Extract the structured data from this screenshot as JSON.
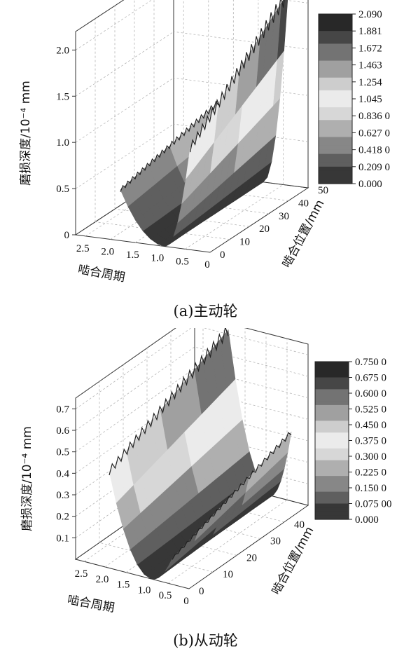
{
  "chart_data": [
    {
      "type": "surface3d",
      "caption": "(a)主动轮",
      "zlabel": "磨损深度/10⁻⁴ mm",
      "xlabel": "啮合周期",
      "ylabel": "啮合位置/mm",
      "x_ticks": [
        "2.5",
        "2.0",
        "1.5",
        "1.0",
        "0.5",
        "0"
      ],
      "y_ticks": [
        "0",
        "10",
        "20",
        "30",
        "40",
        "50"
      ],
      "z_ticks": [
        "0",
        "0.5",
        "1.0",
        "1.5",
        "2.0"
      ],
      "xlim": [
        0,
        2.7
      ],
      "ylim": [
        0,
        50
      ],
      "zlim": [
        0,
        2.2
      ],
      "colorbar": {
        "min": 0.0,
        "max": 2.09,
        "labels": [
          "2.090",
          "1.881",
          "1.672",
          "1.463",
          "1.254",
          "1.045",
          "0.836 0",
          "0.627 0",
          "0.418 0",
          "0.209 0",
          "0.000"
        ]
      },
      "surface": {
        "valley_cycle": 0.9,
        "left_cycle": 1.8,
        "right_cycle": 0.4,
        "left_wear_at_position_0": 0.55,
        "left_wear_at_position_50": 0.8,
        "right_wear_at_position_0": 1.1,
        "right_wear_at_position_50": 2.09
      },
      "grid": true
    },
    {
      "type": "surface3d",
      "caption": "(b)从动轮",
      "zlabel": "磨损深度/10⁻⁴ mm",
      "xlabel": "啮合周期",
      "ylabel": "啮合位置/mm",
      "x_ticks": [
        "2.5",
        "2.0",
        "1.5",
        "1.0",
        "0.5",
        "0"
      ],
      "y_ticks": [
        "0",
        "10",
        "20",
        "30",
        "40",
        "50"
      ],
      "z_ticks": [
        "0.1",
        "0.2",
        "0.3",
        "0.4",
        "0.5",
        "0.6",
        "0.7"
      ],
      "xlim": [
        0,
        2.7
      ],
      "ylim": [
        0,
        50
      ],
      "zlim": [
        0,
        0.75
      ],
      "colorbar": {
        "min": 0.0,
        "max": 0.75,
        "labels": [
          "0.750 0",
          "0.675 0",
          "0.600 0",
          "0.525 0",
          "0.450 0",
          "0.375 0",
          "0.300 0",
          "0.225 0",
          "0.150 0",
          "0.075 00",
          "0.000"
        ]
      },
      "surface": {
        "valley_cycle": 0.9,
        "left_cycle": 1.9,
        "right_cycle": 0.4,
        "left_wear_at_position_0": 0.45,
        "left_wear_at_position_50": 0.72,
        "right_wear_at_position_0": 0.12,
        "right_wear_at_position_50": 0.32
      },
      "grid": true
    }
  ]
}
